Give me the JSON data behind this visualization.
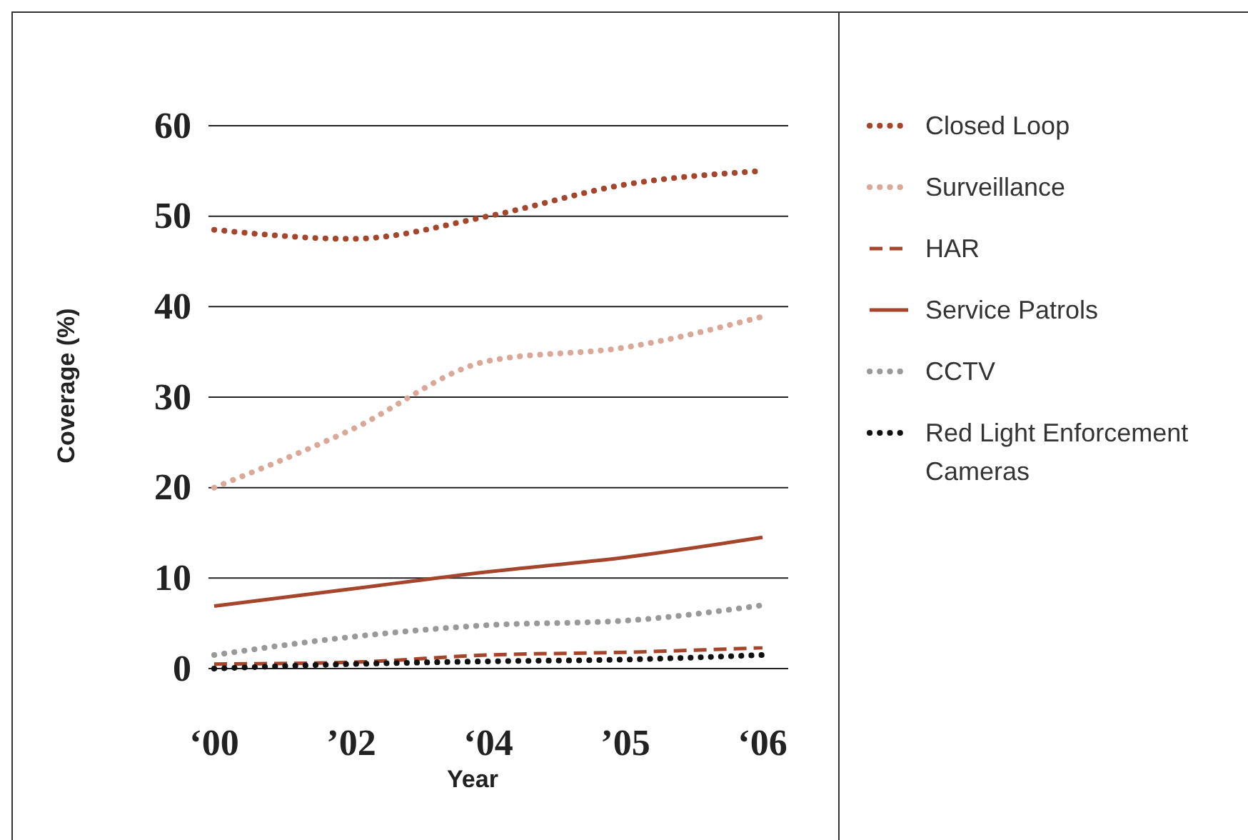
{
  "chart_data": {
    "type": "line",
    "xlabel": "Year",
    "ylabel": "Coverage (%)",
    "categories": [
      "‘00",
      "’02",
      "‘04",
      "’05",
      "‘06"
    ],
    "ylim": [
      0,
      60
    ],
    "yticks": [
      0,
      10,
      20,
      30,
      40,
      50,
      60
    ],
    "grid": "y",
    "legend": "right",
    "series": [
      {
        "name": "Closed Loop",
        "color": "#a5462c",
        "line_style": "dotted",
        "values": [
          48.5,
          47.5,
          50,
          53.5,
          55
        ]
      },
      {
        "name": "Surveillance",
        "color": "#d9a898",
        "line_style": "dotted",
        "values": [
          20,
          26.4,
          34,
          35.5,
          38.9
        ]
      },
      {
        "name": "HAR",
        "color": "#a5462c",
        "line_style": "dashed",
        "values": [
          0.5,
          0.7,
          1.5,
          1.8,
          2.3
        ]
      },
      {
        "name": "Service Patrols",
        "color": "#a5462c",
        "line_style": "solid",
        "values": [
          6.9,
          8.8,
          10.7,
          12.3,
          14.5
        ]
      },
      {
        "name": "CCTV",
        "color": "#999999",
        "line_style": "dotted",
        "values": [
          1.5,
          3.5,
          4.8,
          5.3,
          7
        ]
      },
      {
        "name": "Red Light Enforcement Cameras",
        "color": "#111111",
        "line_style": "dotted",
        "values": [
          0,
          0.5,
          0.8,
          1,
          1.5
        ]
      }
    ]
  }
}
